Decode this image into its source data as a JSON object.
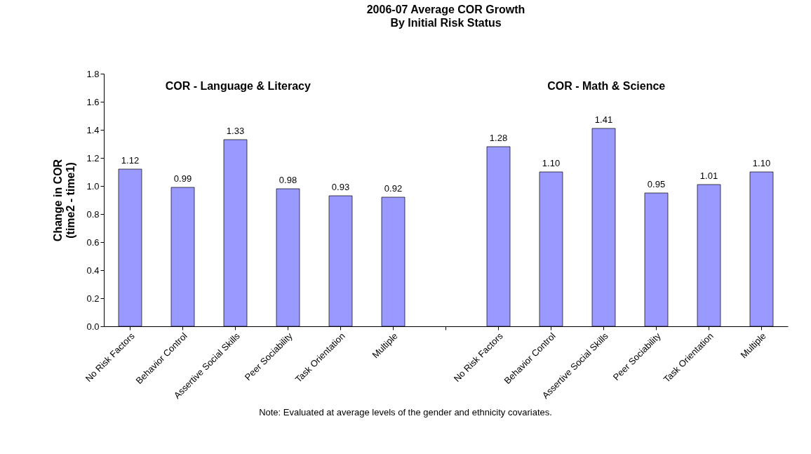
{
  "chart_data": {
    "type": "bar",
    "title": "2006-07 Average COR Growth",
    "subtitle": "By Initial Risk Status",
    "ylabel": "Change in COR\n(time2  - time1)",
    "categories": [
      "No Risk Factors",
      "Behavior Control",
      "Assertive Social Skills",
      "Peer Sociability",
      "Task Orientation",
      "Multiple",
      null,
      "No Risk Factors",
      "Behavior Control",
      "Assertive Social Skills",
      "Peer Sociability",
      "Task Orientation",
      "Multiple"
    ],
    "values": [
      1.12,
      0.99,
      1.33,
      0.98,
      0.93,
      0.92,
      null,
      1.28,
      1.1,
      1.41,
      0.95,
      1.01,
      1.1
    ],
    "value_labels": [
      "1.12",
      "0.99",
      "1.33",
      "0.98",
      "0.93",
      "0.92",
      null,
      "1.28",
      "1.10",
      "1.41",
      "0.95",
      "1.01",
      "1.10"
    ],
    "color": "#9999ff",
    "ylim": [
      0,
      1.8
    ],
    "yticks": [
      {
        "value": 0,
        "label": "0.0"
      },
      {
        "value": 0.2,
        "label": "0.2"
      },
      {
        "value": 0.4,
        "label": "0.4"
      },
      {
        "value": 0.6,
        "label": "0.6"
      },
      {
        "value": 0.8,
        "label": "0.8"
      },
      {
        "value": 1,
        "label": "1.0"
      },
      {
        "value": 1.2,
        "label": "1.2"
      },
      {
        "value": 1.4,
        "label": "1.4"
      },
      {
        "value": 1.6,
        "label": "1.6"
      },
      {
        "value": 1.8,
        "label": "1.8"
      }
    ],
    "grid": false,
    "annotations": [
      "COR - Language & Literacy",
      "COR - Math & Science",
      "Note: Evaluated at average levels of the gender and ethnicity covariates."
    ]
  }
}
